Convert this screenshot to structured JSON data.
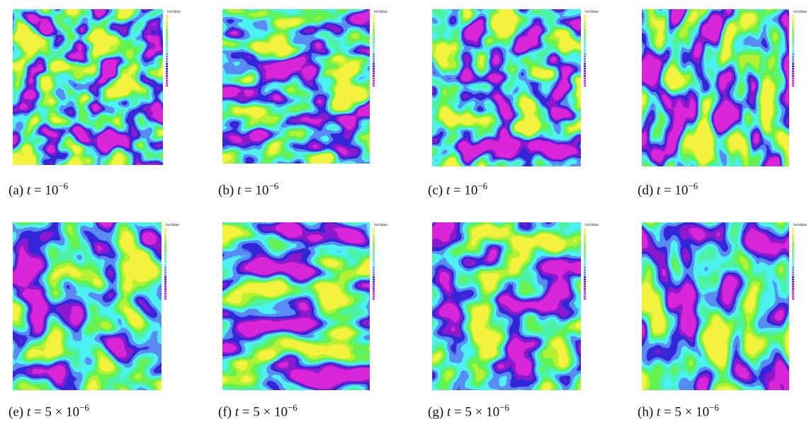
{
  "figure": {
    "legend_title": "IsoValue",
    "panels": [
      {
        "label": "(a)",
        "variable": "t",
        "expression": "= 10",
        "exponent": "−6"
      },
      {
        "label": "(b)",
        "variable": "t",
        "expression": "= 10",
        "exponent": "−6"
      },
      {
        "label": "(c)",
        "variable": "t",
        "expression": "= 10",
        "exponent": "−6"
      },
      {
        "label": "(d)",
        "variable": "t",
        "expression": "= 10",
        "exponent": "−6"
      },
      {
        "label": "(e)",
        "variable": "t",
        "expression": "= 5 × 10",
        "exponent": "−6"
      },
      {
        "label": "(f)",
        "variable": "t",
        "expression": "= 5 × 10",
        "exponent": "−6"
      },
      {
        "label": "(g)",
        "variable": "t",
        "expression": "= 5 × 10",
        "exponent": "−6"
      },
      {
        "label": "(h)",
        "variable": "t",
        "expression": "= 5 × 10",
        "exponent": "−6"
      }
    ]
  }
}
